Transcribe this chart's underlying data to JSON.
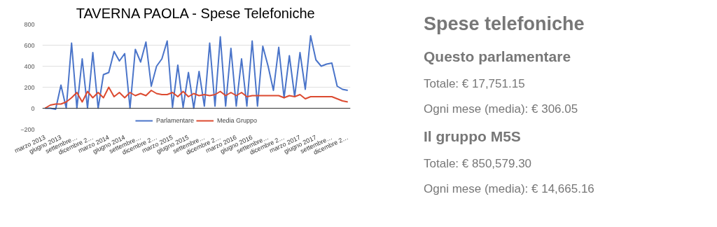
{
  "chart_data": [
    {
      "type": "line",
      "title": "TAVERNA PAOLA - Spese Telefoniche",
      "categories": [
        "marzo 2013",
        null,
        null,
        "giugno 2013",
        null,
        null,
        "settembre…",
        null,
        null,
        "dicembre 2…",
        null,
        null,
        "marzo 2014",
        null,
        null,
        "giugno 2014",
        null,
        null,
        "settembre…",
        null,
        null,
        "dicembre 2…",
        null,
        null,
        "marzo 2015",
        null,
        null,
        "giugno 2015",
        null,
        null,
        "settembre…",
        null,
        null,
        "dicembre 2…",
        null,
        null,
        "marzo 2016",
        null,
        null,
        "giugno 2016",
        null,
        null,
        "settembre…",
        null,
        null,
        "dicembre 2…",
        null,
        null,
        "marzo 2017",
        null,
        null,
        "giugno 2017",
        null,
        null,
        "settembre…",
        null,
        null,
        "dicembre 2…"
      ],
      "series": [
        {
          "name": "Parlamentare",
          "color": "#4a74c9",
          "values": [
            0,
            0,
            -10,
            220,
            0,
            620,
            0,
            470,
            0,
            530,
            0,
            320,
            340,
            540,
            450,
            520,
            0,
            560,
            440,
            630,
            210,
            400,
            470,
            640,
            10,
            410,
            10,
            340,
            0,
            350,
            20,
            620,
            20,
            680,
            20,
            570,
            20,
            470,
            20,
            640,
            20,
            590,
            400,
            170,
            580,
            100,
            500,
            110,
            530,
            180,
            690,
            460,
            400,
            420,
            430,
            210,
            180,
            170
          ]
        },
        {
          "name": "Media Gruppo",
          "color": "#dc4a30",
          "values": [
            0,
            30,
            40,
            40,
            60,
            100,
            150,
            60,
            160,
            100,
            150,
            100,
            200,
            110,
            150,
            100,
            150,
            120,
            140,
            120,
            170,
            140,
            130,
            130,
            150,
            110,
            160,
            110,
            140,
            120,
            130,
            120,
            130,
            160,
            120,
            150,
            120,
            150,
            110,
            120,
            120,
            120,
            120,
            120,
            120,
            100,
            120,
            110,
            130,
            90,
            110,
            110,
            110,
            110,
            110,
            90,
            70,
            60
          ]
        }
      ],
      "ylim": [
        -200,
        800
      ],
      "yticks": [
        -200,
        0,
        200,
        400,
        600,
        800
      ],
      "grid": "y",
      "legend": "bottom",
      "line_style": "solid",
      "marker": "none"
    },
    {
      "type": "other",
      "title": "Spese telefoniche",
      "annotations": [
        "Questo parlamentare",
        "Totale: € 17,751.15",
        "Ogni mese (media): € 306.05",
        "Il gruppo M5S",
        "Totale: € 850,579.30",
        "Ogni mese (media): € 14,665.16"
      ]
    }
  ]
}
